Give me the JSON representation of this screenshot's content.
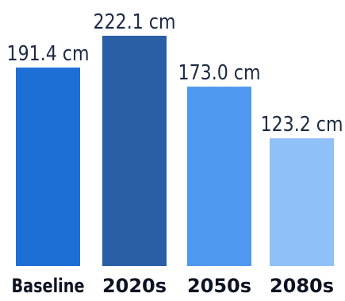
{
  "chart_data": {
    "type": "bar",
    "categories": [
      "Baseline",
      "2020s",
      "2050s",
      "2080s"
    ],
    "values": [
      191.4,
      222.1,
      173.0,
      123.2
    ],
    "value_labels": [
      "191.4 cm",
      "222.1 cm",
      "173.0 cm",
      "123.2 cm"
    ],
    "unit": "cm",
    "colors": [
      "#1e6fd5",
      "#2a5fa6",
      "#4f98ef",
      "#8fc0f7"
    ],
    "title": "",
    "xlabel": "",
    "ylabel": "",
    "ylim": [
      0,
      222.1
    ],
    "grid": false,
    "legend": "none"
  }
}
